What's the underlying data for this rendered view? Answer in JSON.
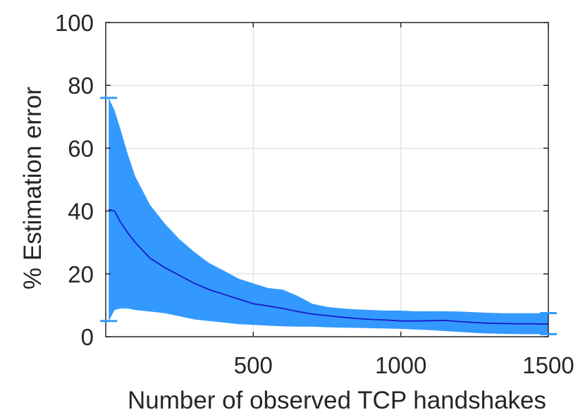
{
  "chart_data": {
    "type": "line",
    "title": "",
    "xlabel": "Number of observed TCP handshakes",
    "ylabel": "% Estimation error",
    "xlim": [
      0,
      1500
    ],
    "ylim": [
      0,
      100
    ],
    "grid": true,
    "legend": "none",
    "xticks": [
      500,
      1000,
      1500
    ],
    "xtick_labels": [
      "500",
      "1000",
      "1500"
    ],
    "yticks": [
      0,
      20,
      40,
      60,
      80,
      100
    ],
    "ytick_labels": [
      "0",
      "20",
      "40",
      "60",
      "80",
      "100"
    ],
    "x": [
      10,
      30,
      50,
      75,
      100,
      150,
      200,
      250,
      300,
      350,
      400,
      450,
      500,
      550,
      600,
      650,
      700,
      750,
      800,
      850,
      900,
      950,
      1000,
      1050,
      1100,
      1150,
      1200,
      1250,
      1300,
      1350,
      1400,
      1450,
      1500
    ],
    "series": [
      {
        "mean": [
          40.5,
          40,
          36.5,
          33,
          30,
          25,
          22,
          19.5,
          17,
          15,
          13.5,
          12,
          10.5,
          9.8,
          9,
          8,
          7.2,
          6.7,
          6.2,
          5.8,
          5.5,
          5.3,
          5,
          5,
          5.1,
          5.2,
          4.8,
          4.5,
          4.3,
          4.2,
          4.1,
          4.1,
          4
        ],
        "upper": [
          76,
          72,
          66,
          58,
          51,
          42,
          36,
          31,
          27,
          23.5,
          21,
          18.5,
          17,
          15.5,
          15,
          13,
          10.5,
          9.5,
          9,
          8.7,
          8.5,
          8.3,
          8.3,
          8.1,
          8.1,
          8.1,
          8,
          7.8,
          7.6,
          7.5,
          7.5,
          7.5,
          7.5
        ],
        "lower": [
          5,
          8.5,
          9,
          9,
          8.5,
          8,
          7.5,
          6.5,
          5.5,
          5,
          4.5,
          4,
          3.8,
          3.5,
          3.3,
          3.2,
          3.2,
          3,
          2.9,
          2.8,
          2.7,
          2.6,
          2.5,
          2.3,
          2.1,
          1.8,
          1.5,
          1.2,
          1,
          0.9,
          0.8,
          0.8,
          0.8
        ]
      }
    ],
    "colors": {
      "band": "#3399ff",
      "mean_line": "#1a1acc",
      "grid": "#d9d9d9",
      "axis": "#262626"
    }
  }
}
